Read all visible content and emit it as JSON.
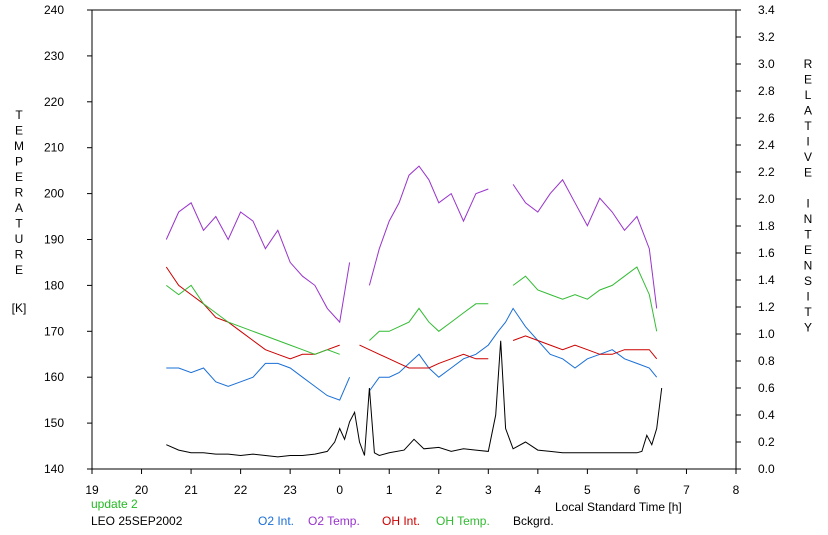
{
  "chart_data": {
    "type": "line",
    "xlabel": "Local Standard Time [h]",
    "ylabel_left": "TEMPERATURE [K]",
    "ylabel_left_letters": [
      "T",
      "E",
      "M",
      "P",
      "E",
      "R",
      "A",
      "T",
      "U",
      "R",
      "E"
    ],
    "ylabel_left_unit": "[K]",
    "ylabel_right": "RELATIVE INTENSITY",
    "ylabel_right_words": [
      [
        "R",
        "E",
        "L",
        "A",
        "T",
        "I",
        "V",
        "E"
      ],
      [
        "I",
        "N",
        "T",
        "E",
        "N",
        "S",
        "I",
        "T",
        "Y"
      ]
    ],
    "x_axis": {
      "range": [
        19,
        32
      ],
      "ticks": [
        19,
        20,
        21,
        22,
        23,
        24,
        25,
        26,
        27,
        28,
        29,
        30,
        31,
        32
      ],
      "tick_labels": [
        "19",
        "20",
        "21",
        "22",
        "23",
        "0",
        "1",
        "2",
        "3",
        "4",
        "5",
        "6",
        "7",
        "8"
      ]
    },
    "y_left": {
      "range": [
        140,
        240
      ],
      "tick_labels": [
        "140",
        "150",
        "160",
        "170",
        "180",
        "190",
        "200",
        "210",
        "220",
        "230",
        "240"
      ]
    },
    "y_right": {
      "range": [
        0.0,
        3.4
      ],
      "tick_labels": [
        "0.0",
        "0.2",
        "0.4",
        "0.6",
        "0.8",
        "1.0",
        "1.2",
        "1.4",
        "1.6",
        "1.8",
        "2.0",
        "2.2",
        "2.4",
        "2.6",
        "2.8",
        "3.0",
        "3.2",
        "3.4"
      ]
    },
    "grid": false,
    "legend_position": "bottom",
    "series": [
      {
        "name": "O2 Int.",
        "axis": "left",
        "color": "#1a6fd6",
        "x": [
          20.5,
          20.75,
          21.0,
          21.25,
          21.5,
          21.75,
          22.0,
          22.25,
          22.5,
          22.75,
          23.0,
          23.25,
          23.5,
          23.75,
          24.0,
          24.2,
          24.4,
          24.6,
          24.8,
          25.0,
          25.2,
          25.4,
          25.6,
          25.8,
          26.0,
          26.25,
          26.5,
          26.75,
          27.0,
          27.2,
          27.35,
          27.5,
          27.75,
          28.0,
          28.25,
          28.5,
          28.75,
          29.0,
          29.25,
          29.5,
          29.75,
          30.0,
          30.25,
          30.4
        ],
        "y": [
          162,
          162,
          161,
          162,
          159,
          158,
          159,
          160,
          163,
          163,
          162,
          160,
          158,
          156,
          155,
          160,
          null,
          157,
          160,
          160,
          161,
          163,
          165,
          162,
          160,
          162,
          164,
          165,
          167,
          170,
          172,
          175,
          171,
          168,
          165,
          164,
          162,
          164,
          165,
          166,
          164,
          163,
          162,
          160
        ]
      },
      {
        "name": "O2 Temp.",
        "axis": "left",
        "color": "#9933cc",
        "x": [
          20.5,
          20.75,
          21.0,
          21.25,
          21.5,
          21.75,
          22.0,
          22.25,
          22.5,
          22.75,
          23.0,
          23.25,
          23.5,
          23.75,
          24.0,
          24.2,
          24.4,
          24.6,
          24.8,
          25.0,
          25.2,
          25.4,
          25.6,
          25.8,
          26.0,
          26.25,
          26.5,
          26.75,
          27.0,
          27.2,
          27.35,
          27.5,
          27.75,
          28.0,
          28.25,
          28.5,
          28.75,
          29.0,
          29.25,
          29.5,
          29.75,
          30.0,
          30.25,
          30.4
        ],
        "y": [
          190,
          196,
          198,
          192,
          195,
          190,
          196,
          194,
          188,
          192,
          185,
          182,
          180,
          175,
          172,
          185,
          null,
          180,
          188,
          194,
          198,
          204,
          206,
          203,
          198,
          200,
          194,
          200,
          201,
          null,
          null,
          202,
          198,
          196,
          200,
          203,
          198,
          193,
          199,
          196,
          192,
          195,
          188,
          175
        ]
      },
      {
        "name": "OH Int.",
        "axis": "left",
        "color": "#cc0000",
        "x": [
          20.5,
          20.75,
          21.0,
          21.25,
          21.5,
          21.75,
          22.0,
          22.25,
          22.5,
          22.75,
          23.0,
          23.25,
          23.5,
          23.75,
          24.0,
          24.2,
          24.4,
          24.6,
          24.8,
          25.0,
          25.2,
          25.4,
          25.6,
          25.8,
          26.0,
          26.25,
          26.5,
          26.75,
          27.0,
          27.2,
          27.35,
          27.5,
          27.75,
          28.0,
          28.25,
          28.5,
          28.75,
          29.0,
          29.25,
          29.5,
          29.75,
          30.0,
          30.25,
          30.4
        ],
        "y": [
          184,
          180,
          178,
          176,
          173,
          172,
          170,
          168,
          166,
          165,
          164,
          165,
          165,
          166,
          167,
          null,
          167,
          166,
          165,
          164,
          163,
          162,
          162,
          162,
          163,
          164,
          165,
          164,
          164,
          null,
          null,
          168,
          169,
          168,
          167,
          166,
          167,
          166,
          165,
          165,
          166,
          166,
          166,
          164
        ]
      },
      {
        "name": "OH Temp.",
        "axis": "left",
        "color": "#33bb33",
        "x": [
          20.5,
          20.75,
          21.0,
          21.25,
          21.5,
          21.75,
          22.0,
          22.25,
          22.5,
          22.75,
          23.0,
          23.25,
          23.5,
          23.75,
          24.0,
          24.2,
          24.4,
          24.6,
          24.8,
          25.0,
          25.2,
          25.4,
          25.6,
          25.8,
          26.0,
          26.25,
          26.5,
          26.75,
          27.0,
          27.2,
          27.35,
          27.5,
          27.75,
          28.0,
          28.25,
          28.5,
          28.75,
          29.0,
          29.25,
          29.5,
          29.75,
          30.0,
          30.25,
          30.4
        ],
        "y": [
          180,
          178,
          180,
          176,
          174,
          172,
          171,
          170,
          169,
          168,
          167,
          166,
          165,
          166,
          165,
          null,
          null,
          168,
          170,
          170,
          171,
          172,
          175,
          172,
          170,
          172,
          174,
          176,
          176,
          null,
          null,
          180,
          182,
          179,
          178,
          177,
          178,
          177,
          179,
          180,
          182,
          184,
          178,
          170
        ]
      },
      {
        "name": "Bckgrd.",
        "axis": "right",
        "color": "#000000",
        "x": [
          20.5,
          20.75,
          21.0,
          21.25,
          21.5,
          21.75,
          22.0,
          22.25,
          22.5,
          22.75,
          23.0,
          23.25,
          23.5,
          23.75,
          23.9,
          24.0,
          24.1,
          24.2,
          24.3,
          24.4,
          24.5,
          24.6,
          24.7,
          24.8,
          25.0,
          25.3,
          25.5,
          25.7,
          26.0,
          26.25,
          26.5,
          26.75,
          27.0,
          27.15,
          27.25,
          27.35,
          27.5,
          27.75,
          28.0,
          28.25,
          28.5,
          28.75,
          29.0,
          29.25,
          29.5,
          29.75,
          30.0,
          30.1,
          30.2,
          30.3,
          30.4,
          30.5
        ],
        "y": [
          0.18,
          0.14,
          0.12,
          0.12,
          0.11,
          0.11,
          0.1,
          0.11,
          0.1,
          0.09,
          0.1,
          0.1,
          0.11,
          0.13,
          0.2,
          0.3,
          0.22,
          0.35,
          0.42,
          0.2,
          0.1,
          0.6,
          0.12,
          0.1,
          0.12,
          0.14,
          0.22,
          0.15,
          0.16,
          0.13,
          0.15,
          0.14,
          0.13,
          0.4,
          0.95,
          0.3,
          0.15,
          0.2,
          0.14,
          0.13,
          0.12,
          0.12,
          0.12,
          0.12,
          0.12,
          0.12,
          0.12,
          0.13,
          0.25,
          0.18,
          0.3,
          0.6
        ]
      }
    ]
  },
  "footer": {
    "update": "update 2",
    "station": "LEO 25SEP2002"
  },
  "colors": {
    "o2_int": "#1a6fd6",
    "o2_temp": "#9933cc",
    "oh_int": "#cc0000",
    "oh_temp": "#33bb33",
    "bckgrd": "#000000",
    "update": "#22bb22"
  }
}
